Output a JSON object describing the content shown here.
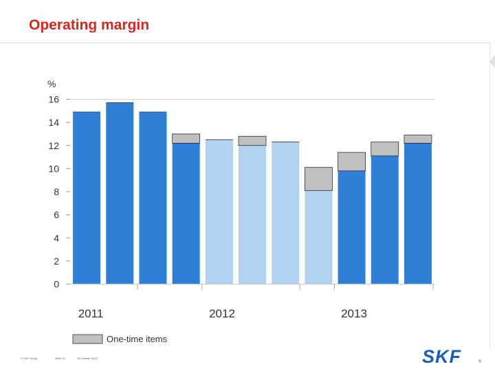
{
  "title": "Operating margin",
  "footer": {
    "group": "© SKF Group",
    "slide": "Slide 20",
    "date": "15 October 2013"
  },
  "logo": {
    "text": "SKF",
    "registered": "®",
    "color": "#1a5fb4"
  },
  "chart_data": {
    "type": "bar",
    "ylabel": "%",
    "ylim": [
      0,
      16
    ],
    "yticks": [
      "0",
      "2",
      "4",
      "6",
      "8",
      "10",
      "12",
      "14",
      "16"
    ],
    "year_labels": [
      "2011",
      "2012",
      "2013"
    ],
    "legend": {
      "label": "One-time items",
      "color": "#c0c0c0"
    },
    "colors": {
      "dark": "#2e7fd6",
      "light": "#b3d1f0",
      "one_time": "#c0c0c0"
    },
    "bars": [
      {
        "value": 14.9,
        "one_time": 0.0,
        "shade": "dark"
      },
      {
        "value": 15.7,
        "one_time": 0.0,
        "shade": "dark"
      },
      {
        "value": 14.9,
        "one_time": 0.0,
        "shade": "dark"
      },
      {
        "value": 12.2,
        "one_time": 0.8,
        "shade": "dark"
      },
      {
        "value": 12.5,
        "one_time": 0.0,
        "shade": "light"
      },
      {
        "value": 12.0,
        "one_time": 0.8,
        "shade": "light"
      },
      {
        "value": 12.3,
        "one_time": 0.0,
        "shade": "light"
      },
      {
        "value": 8.1,
        "one_time": 2.0,
        "shade": "light"
      },
      {
        "value": 9.8,
        "one_time": 1.6,
        "shade": "dark"
      },
      {
        "value": 11.1,
        "one_time": 1.2,
        "shade": "dark"
      },
      {
        "value": 12.2,
        "one_time": 0.7,
        "shade": "dark"
      }
    ]
  }
}
